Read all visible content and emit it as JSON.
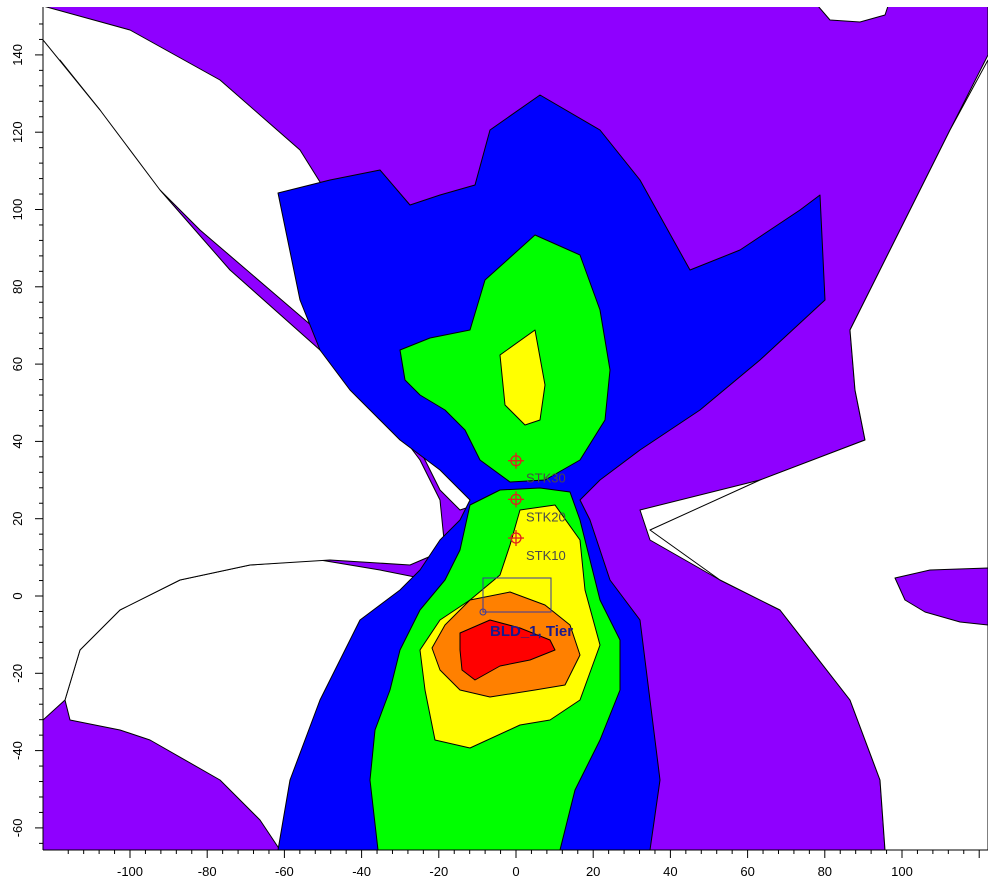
{
  "chart_data": {
    "type": "contour",
    "title": "",
    "xlabel": "",
    "ylabel": "",
    "xlim": [
      -119,
      122
    ],
    "ylim": [
      -66,
      152
    ],
    "xticks": [
      -100,
      -80,
      -60,
      -40,
      -20,
      0,
      20,
      40,
      60,
      80,
      100
    ],
    "yticks": [
      -60,
      -40,
      -20,
      0,
      20,
      40,
      60,
      80,
      100,
      120,
      140
    ],
    "levels": [
      {
        "name": "level-1",
        "color": "#8f00ff"
      },
      {
        "name": "level-2",
        "color": "#0000ff"
      },
      {
        "name": "level-3",
        "color": "#00ff00"
      },
      {
        "name": "level-4",
        "color": "#ffff00"
      },
      {
        "name": "level-5",
        "color": "#ff8000"
      },
      {
        "name": "level-6",
        "color": "#ff0000"
      }
    ],
    "sources": [
      {
        "label": "STK30",
        "x": 0,
        "y": 35
      },
      {
        "label": "STK20",
        "x": 0,
        "y": 25
      },
      {
        "label": "STK10",
        "x": 0,
        "y": 15
      }
    ],
    "building": {
      "label": "BLD_1, Tier",
      "x_range": [
        -9,
        9
      ],
      "y_range": [
        -5,
        4
      ]
    },
    "grid": false
  }
}
